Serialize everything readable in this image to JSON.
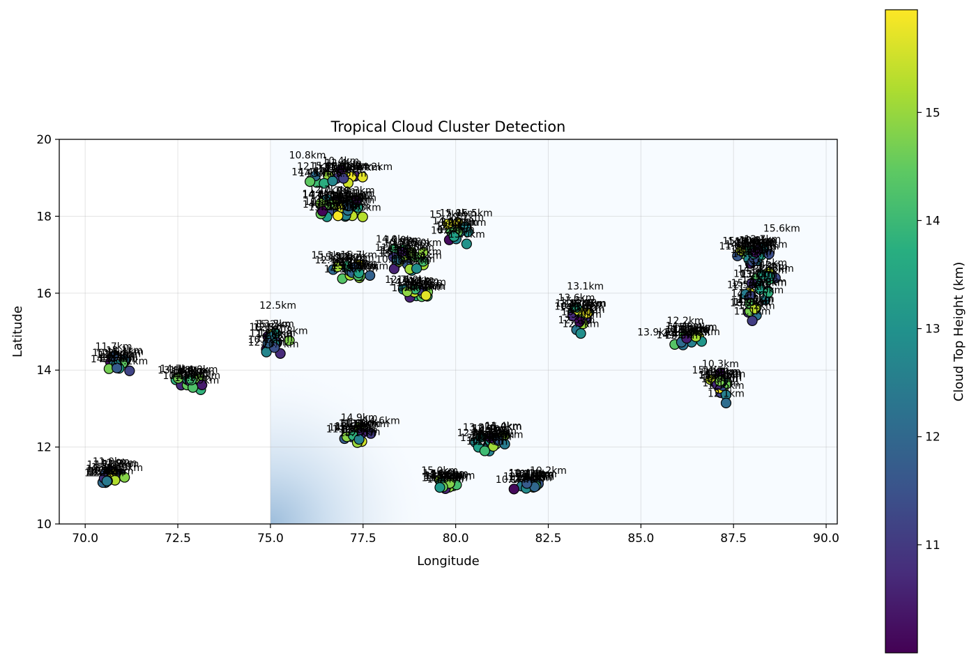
{
  "chart_data": {
    "type": "scatter",
    "title": "Tropical Cloud Cluster Detection",
    "xlabel": "Longitude",
    "ylabel": "Latitude",
    "xlim": [
      69.3,
      90.3
    ],
    "ylim": [
      10,
      20
    ],
    "xticks": [
      "70.0",
      "72.5",
      "75.0",
      "77.5",
      "80.0",
      "82.5",
      "85.0",
      "87.5",
      "90.0"
    ],
    "xtick_values": [
      70.0,
      72.5,
      75.0,
      77.5,
      80.0,
      82.5,
      85.0,
      87.5,
      90.0
    ],
    "yticks": [
      "10",
      "12",
      "14",
      "16",
      "18",
      "20"
    ],
    "ytick_values": [
      10,
      12,
      14,
      16,
      18,
      20
    ],
    "grid": true,
    "colorbar": {
      "label": "Cloud Top Height (km)",
      "min": 10.0,
      "max": 15.95,
      "ticks": [
        "11",
        "12",
        "13",
        "14",
        "15"
      ],
      "tick_values": [
        11,
        12,
        13,
        14,
        15
      ],
      "colormap": "viridis"
    },
    "background": {
      "note_colormap": "Blues",
      "x_start": 75.0,
      "peak": [
        75.0,
        10.0
      ]
    },
    "clusters": [
      {
        "cx": 77.0,
        "cy": 18.2,
        "n": 28,
        "sx": 0.55,
        "sy": 0.2
      },
      {
        "cx": 77.0,
        "cy": 19.0,
        "n": 16,
        "sx": 0.6,
        "sy": 0.2
      },
      {
        "cx": 77.2,
        "cy": 16.55,
        "n": 16,
        "sx": 0.5,
        "sy": 0.2
      },
      {
        "cx": 78.7,
        "cy": 16.8,
        "n": 20,
        "sx": 0.45,
        "sy": 0.25
      },
      {
        "cx": 79.0,
        "cy": 16.0,
        "n": 12,
        "sx": 0.4,
        "sy": 0.2
      },
      {
        "cx": 80.1,
        "cy": 17.6,
        "n": 12,
        "sx": 0.35,
        "sy": 0.25
      },
      {
        "cx": 83.4,
        "cy": 15.3,
        "n": 14,
        "sx": 0.25,
        "sy": 0.3
      },
      {
        "cx": 75.2,
        "cy": 14.7,
        "n": 12,
        "sx": 0.3,
        "sy": 0.2
      },
      {
        "cx": 70.9,
        "cy": 14.2,
        "n": 12,
        "sx": 0.25,
        "sy": 0.25
      },
      {
        "cx": 72.8,
        "cy": 13.7,
        "n": 14,
        "sx": 0.35,
        "sy": 0.15
      },
      {
        "cx": 70.7,
        "cy": 11.2,
        "n": 14,
        "sx": 0.35,
        "sy": 0.15
      },
      {
        "cx": 77.4,
        "cy": 12.3,
        "n": 14,
        "sx": 0.35,
        "sy": 0.15
      },
      {
        "cx": 81.0,
        "cy": 12.1,
        "n": 20,
        "sx": 0.4,
        "sy": 0.2
      },
      {
        "cx": 79.8,
        "cy": 11.0,
        "n": 12,
        "sx": 0.3,
        "sy": 0.15
      },
      {
        "cx": 82.0,
        "cy": 11.0,
        "n": 14,
        "sx": 0.4,
        "sy": 0.15
      },
      {
        "cx": 86.3,
        "cy": 14.8,
        "n": 14,
        "sx": 0.35,
        "sy": 0.15
      },
      {
        "cx": 87.2,
        "cy": 13.6,
        "n": 14,
        "sx": 0.25,
        "sy": 0.3
      },
      {
        "cx": 88.1,
        "cy": 17.0,
        "n": 20,
        "sx": 0.45,
        "sy": 0.25
      },
      {
        "cx": 88.3,
        "cy": 16.1,
        "n": 16,
        "sx": 0.45,
        "sy": 0.3
      },
      {
        "cx": 88.0,
        "cy": 15.5,
        "n": 8,
        "sx": 0.2,
        "sy": 0.2
      }
    ],
    "labeled_points": [
      {
        "label": "10.8km",
        "x": 76.0,
        "y": 19.5
      },
      {
        "label": "14.2km",
        "x": 77.8,
        "y": 19.2
      },
      {
        "label": "15.1km",
        "x": 76.6,
        "y": 16.9
      },
      {
        "label": "12.5km",
        "x": 75.2,
        "y": 15.6
      },
      {
        "label": "12.9km",
        "x": 70.9,
        "y": 11.5
      },
      {
        "label": "14.6km",
        "x": 78.0,
        "y": 12.6
      },
      {
        "label": "13.6km",
        "x": 79.8,
        "y": 11.2
      },
      {
        "label": "10.2km",
        "x": 82.5,
        "y": 11.3
      },
      {
        "label": "12.2km",
        "x": 86.2,
        "y": 15.2
      },
      {
        "label": "13.9km",
        "x": 85.4,
        "y": 14.9
      },
      {
        "label": "15.6km",
        "x": 88.8,
        "y": 17.6
      },
      {
        "label": "13.1km",
        "x": 83.5,
        "y": 16.1
      },
      {
        "label": "15.5km",
        "x": 80.5,
        "y": 18.0
      }
    ]
  }
}
